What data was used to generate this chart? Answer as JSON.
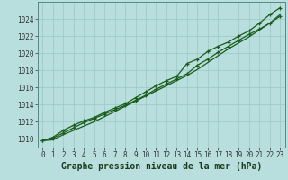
{
  "x": [
    0,
    1,
    2,
    3,
    4,
    5,
    6,
    7,
    8,
    9,
    10,
    11,
    12,
    13,
    14,
    15,
    16,
    17,
    18,
    19,
    20,
    21,
    22,
    23
  ],
  "line1": [
    1009.8,
    1010.1,
    1010.7,
    1011.3,
    1011.9,
    1012.4,
    1012.9,
    1013.4,
    1013.9,
    1014.5,
    1015.1,
    1015.8,
    1016.4,
    1017.0,
    1017.6,
    1018.6,
    1019.3,
    1020.1,
    1020.8,
    1021.5,
    1022.2,
    1022.8,
    1023.5,
    1024.3
  ],
  "line2": [
    1009.8,
    1010.2,
    1011.0,
    1011.6,
    1012.1,
    1012.5,
    1013.1,
    1013.6,
    1014.1,
    1014.8,
    1015.5,
    1016.2,
    1016.8,
    1017.3,
    1018.8,
    1019.3,
    1020.2,
    1020.8,
    1021.3,
    1022.0,
    1022.6,
    1023.5,
    1024.5,
    1025.3
  ],
  "line3": [
    1009.8,
    1009.9,
    1010.5,
    1011.0,
    1011.5,
    1012.0,
    1012.6,
    1013.2,
    1013.8,
    1014.4,
    1015.0,
    1015.6,
    1016.2,
    1016.8,
    1017.4,
    1018.1,
    1018.9,
    1019.7,
    1020.5,
    1021.2,
    1021.9,
    1022.7,
    1023.5,
    1024.5
  ],
  "line_color": "#1a5c1a",
  "bg_color": "#b8dede",
  "grid_color": "#9ac8c8",
  "xlabel": "Graphe pression niveau de la mer (hPa)",
  "ylim": [
    1009.0,
    1026.0
  ],
  "xlim": [
    -0.5,
    23.5
  ],
  "yticks": [
    1010,
    1012,
    1014,
    1016,
    1018,
    1020,
    1022,
    1024
  ],
  "xticks": [
    0,
    1,
    2,
    3,
    4,
    5,
    6,
    7,
    8,
    9,
    10,
    11,
    12,
    13,
    14,
    15,
    16,
    17,
    18,
    19,
    20,
    21,
    22,
    23
  ],
  "tick_fontsize": 5.5,
  "xlabel_fontsize": 7,
  "markersize": 3.5,
  "linewidth": 0.9
}
